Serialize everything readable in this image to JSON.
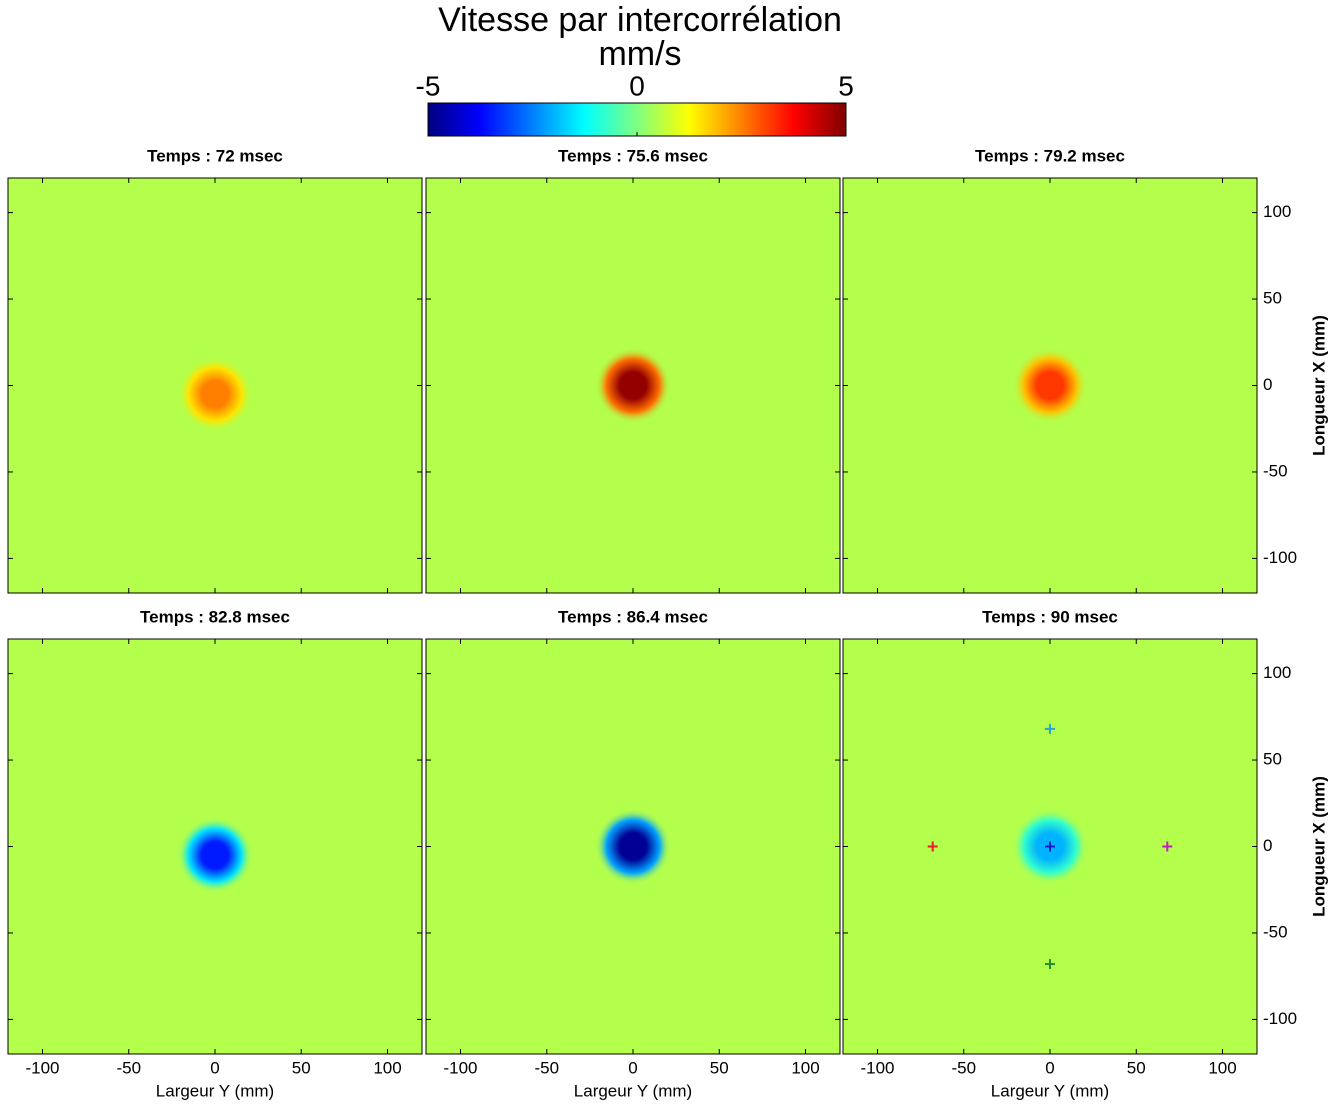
{
  "colorbar": {
    "title": "Vitesse par intercorrélation",
    "unit": "mm/s",
    "lim": [
      -5,
      5
    ],
    "ticks": [
      -5,
      0,
      5
    ],
    "colormap": "jet"
  },
  "chart_data": [
    {
      "type": "heatmap",
      "title": "Temps : 72 msec",
      "xlim": [
        -120,
        120
      ],
      "ylim": [
        -120,
        120
      ],
      "xticks": [
        -100,
        -50,
        0,
        50,
        100
      ],
      "yticks": [
        -100,
        -50,
        0,
        50,
        100
      ],
      "background": 0.5,
      "peak": {
        "x": 0,
        "y": -5,
        "value": 2.5
      }
    },
    {
      "type": "heatmap",
      "title": "Temps : 75.6 msec",
      "xlim": [
        -120,
        120
      ],
      "ylim": [
        -120,
        120
      ],
      "xticks": [
        -100,
        -50,
        0,
        50,
        100
      ],
      "yticks": [
        -100,
        -50,
        0,
        50,
        100
      ],
      "background": 0.5,
      "peak": {
        "x": 0,
        "y": 0,
        "value": 4.8
      }
    },
    {
      "type": "heatmap",
      "title": "Temps : 79.2 msec",
      "xlim": [
        -120,
        120
      ],
      "ylim": [
        -120,
        120
      ],
      "xticks": [
        -100,
        -50,
        0,
        50,
        100
      ],
      "yticks": [
        -100,
        -50,
        0,
        50,
        100
      ],
      "ylabel": "Longueur X (mm)",
      "background": 0.5,
      "peak": {
        "x": 0,
        "y": 0,
        "value": 3.2
      }
    },
    {
      "type": "heatmap",
      "title": "Temps : 82.8 msec",
      "xlim": [
        -120,
        120
      ],
      "ylim": [
        -120,
        120
      ],
      "xticks": [
        -100,
        -50,
        0,
        50,
        100
      ],
      "yticks": [
        -100,
        -50,
        0,
        50,
        100
      ],
      "xlabel": "Largeur Y (mm)",
      "background": 0.5,
      "peak": {
        "x": 0,
        "y": -5,
        "value": -3.5
      }
    },
    {
      "type": "heatmap",
      "title": "Temps : 86.4 msec",
      "xlim": [
        -120,
        120
      ],
      "ylim": [
        -120,
        120
      ],
      "xticks": [
        -100,
        -50,
        0,
        50,
        100
      ],
      "yticks": [
        -100,
        -50,
        0,
        50,
        100
      ],
      "xlabel": "Largeur Y (mm)",
      "background": 0.5,
      "peak": {
        "x": 0,
        "y": 0,
        "value": -4.8
      }
    },
    {
      "type": "heatmap",
      "title": "Temps : 90 msec",
      "xlim": [
        -120,
        120
      ],
      "ylim": [
        -120,
        120
      ],
      "xticks": [
        -100,
        -50,
        0,
        50,
        100
      ],
      "yticks": [
        -100,
        -50,
        0,
        50,
        100
      ],
      "xlabel": "Largeur Y (mm)",
      "ylabel": "Longueur X (mm)",
      "background": 0.5,
      "peak": {
        "x": 0,
        "y": 0,
        "value": -2
      },
      "markers": [
        {
          "x": 0,
          "y": 68,
          "color": "#29a3d6"
        },
        {
          "x": -68,
          "y": 0,
          "color": "#e8192c"
        },
        {
          "x": 0,
          "y": 0,
          "color": "#1a1acc"
        },
        {
          "x": 68,
          "y": 0,
          "color": "#c21ac2"
        },
        {
          "x": 0,
          "y": -68,
          "color": "#2a8a2a"
        }
      ]
    }
  ]
}
